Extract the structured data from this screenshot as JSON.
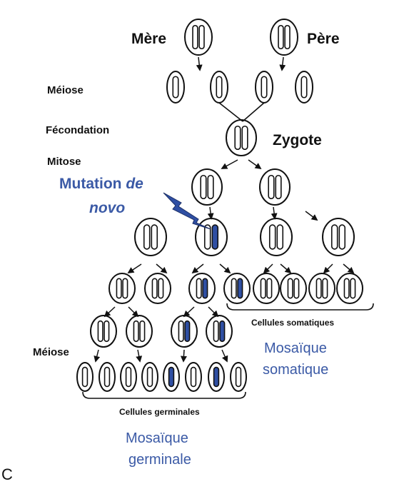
{
  "labels": {
    "mere": "Mère",
    "pere": "Père",
    "meiose_top": "Méiose",
    "fecondation": "Fécondation",
    "zygote": "Zygote",
    "mitose": "Mitose",
    "mutation_line1": "Mutation",
    "mutation_de": "de",
    "mutation_line2": "novo",
    "meiose_bottom": "Méiose",
    "cellules_somatiques": "Cellules somatiques",
    "mosaique_somatique_1": "Mosaïque",
    "mosaique_somatique_2": "somatique",
    "cellules_germinales": "Cellules germinales",
    "mosaique_germinale_1": "Mosaïque",
    "mosaique_germinale_2": "germinale",
    "panel_letter": "C"
  },
  "colors": {
    "outline": "#111111",
    "mutant": "#2f4fa3",
    "mutation_text": "#3b5aa6"
  }
}
